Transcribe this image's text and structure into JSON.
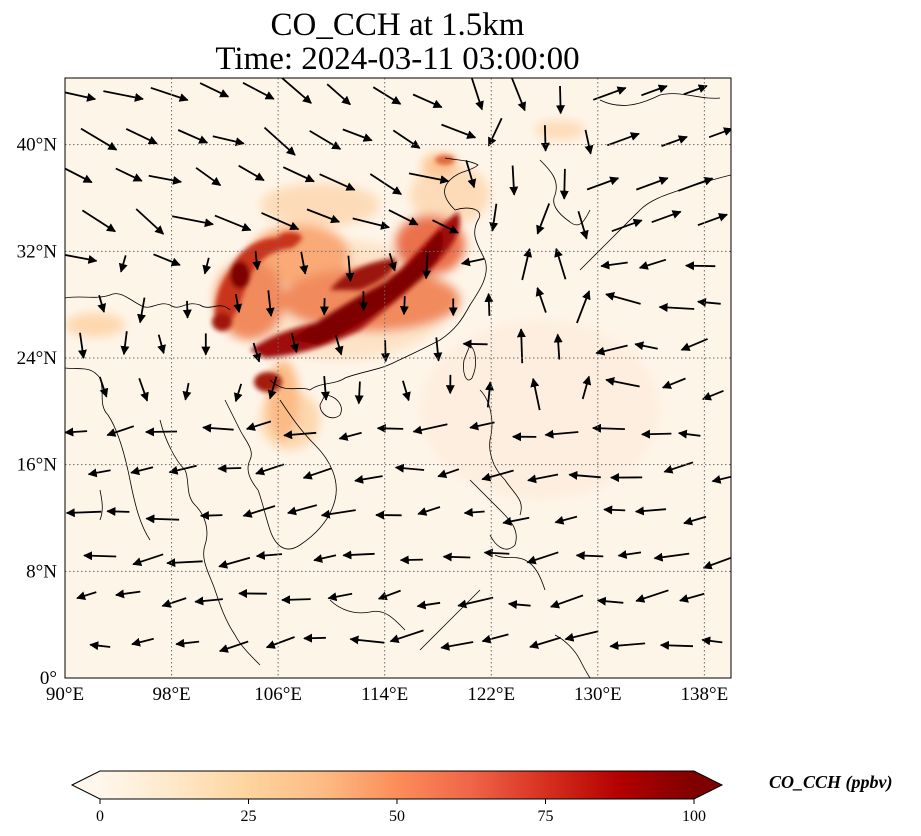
{
  "title": {
    "line1": "CO_CCH at 1.5km",
    "line2": "Time: 2024-03-11 03:00:00"
  },
  "map": {
    "extent": {
      "lon": [
        90,
        140
      ],
      "lat": [
        0,
        45
      ]
    },
    "lon_ticks": [
      "90°E",
      "98°E",
      "106°E",
      "114°E",
      "122°E",
      "130°E",
      "138°E"
    ],
    "lat_ticks": [
      "0°",
      "8°N",
      "16°N",
      "24°N",
      "32°N",
      "40°N"
    ],
    "gridlines": "dotted",
    "colormap": "OrRd",
    "background_color": "#fef5e9"
  },
  "colorbar": {
    "label": "CO_CCH (ppbv)",
    "ticks": [
      "0",
      "25",
      "50",
      "75",
      "100"
    ],
    "range": [
      0,
      100
    ],
    "extend": "both",
    "colors": [
      "#fff7ec",
      "#fee8c8",
      "#fdd49e",
      "#fdbb84",
      "#fc8d59",
      "#ef6548",
      "#d7301f",
      "#b30000",
      "#7f0000"
    ]
  }
}
